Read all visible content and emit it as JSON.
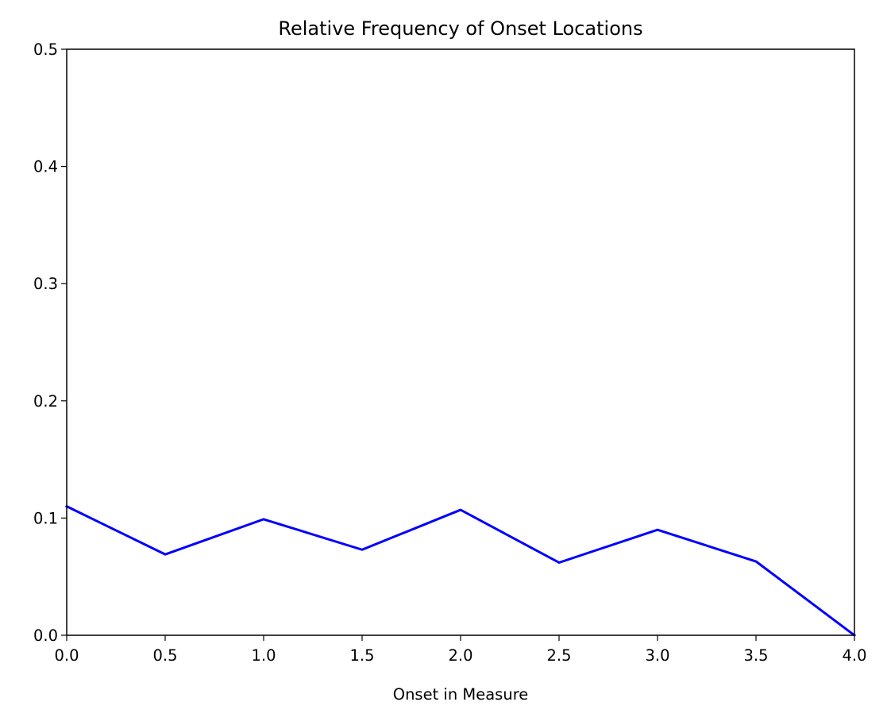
{
  "chart_data": {
    "type": "line",
    "title": "Relative Frequency of Onset Locations",
    "xlabel": "Onset in Measure",
    "ylabel": "",
    "xlim": [
      0.0,
      4.0
    ],
    "ylim": [
      0.0,
      0.5
    ],
    "grid": false,
    "x_ticks": [
      "0.0",
      "0.5",
      "1.0",
      "1.5",
      "2.0",
      "2.5",
      "3.0",
      "3.5",
      "4.0"
    ],
    "y_ticks": [
      "0.0",
      "0.1",
      "0.2",
      "0.3",
      "0.4",
      "0.5"
    ],
    "series": [
      {
        "color": "#0000ff",
        "x": [
          0.0,
          0.5,
          1.0,
          1.5,
          2.0,
          2.5,
          3.0,
          3.5,
          4.0
        ],
        "y": [
          0.11,
          0.069,
          0.099,
          0.073,
          0.107,
          0.062,
          0.09,
          0.063,
          0.0
        ]
      }
    ]
  }
}
